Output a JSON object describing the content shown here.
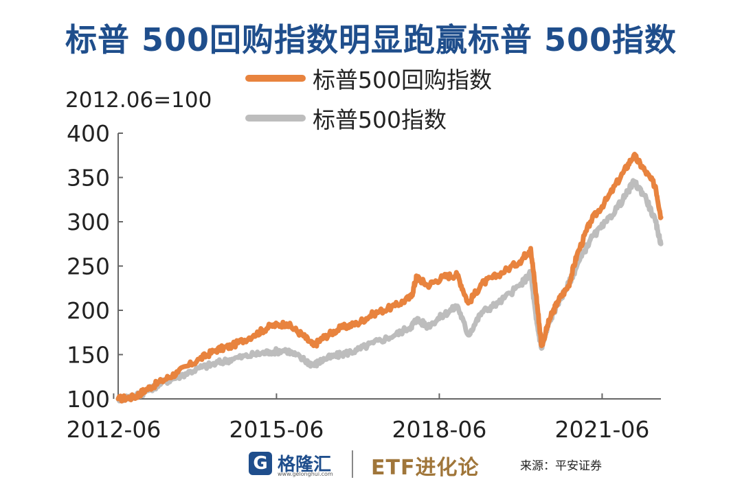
{
  "title": "标普 500回购指数明显跑赢标普 500指数",
  "base_note": "2012.06=100",
  "footer": {
    "logo_mark": "G",
    "logo_name": "格隆汇",
    "logo_url": "www.gelonghui.com",
    "etf_brand": "ETF进化论",
    "source": "来源：平安证券"
  },
  "colors": {
    "buyback": "#e8833e",
    "sp500": "#bdbdbd",
    "title": "#1f4e8c"
  },
  "chart_data": {
    "type": "line",
    "title": "标普 500回购指数明显跑赢标普 500指数",
    "xlabel": "",
    "ylabel": "",
    "ylim": [
      100,
      400
    ],
    "yticks": [
      "100",
      "150",
      "200",
      "250",
      "300",
      "350",
      "400"
    ],
    "xticks": [
      "2012-06",
      "2015-06",
      "2018-06",
      "2021-06"
    ],
    "xlim": [
      2012.5,
      2022.5
    ],
    "grid": false,
    "legend_position": "top",
    "series": [
      {
        "name": "标普500回购指数",
        "color": "#e8833e",
        "points": [
          [
            2012.5,
            100
          ],
          [
            2012.8,
            102
          ],
          [
            2013.0,
            110
          ],
          [
            2013.3,
            120
          ],
          [
            2013.6,
            130
          ],
          [
            2014.0,
            145
          ],
          [
            2014.3,
            155
          ],
          [
            2014.6,
            160
          ],
          [
            2015.0,
            172
          ],
          [
            2015.3,
            182
          ],
          [
            2015.6,
            185
          ],
          [
            2015.9,
            172
          ],
          [
            2016.1,
            160
          ],
          [
            2016.3,
            170
          ],
          [
            2016.6,
            180
          ],
          [
            2016.9,
            185
          ],
          [
            2017.2,
            196
          ],
          [
            2017.6,
            205
          ],
          [
            2017.9,
            215
          ],
          [
            2018.0,
            238
          ],
          [
            2018.2,
            228
          ],
          [
            2018.5,
            238
          ],
          [
            2018.75,
            240
          ],
          [
            2018.95,
            208
          ],
          [
            2019.2,
            230
          ],
          [
            2019.5,
            240
          ],
          [
            2019.9,
            255
          ],
          [
            2020.1,
            270
          ],
          [
            2020.2,
            218
          ],
          [
            2020.3,
            160
          ],
          [
            2020.45,
            190
          ],
          [
            2020.6,
            210
          ],
          [
            2020.8,
            228
          ],
          [
            2020.95,
            262
          ],
          [
            2021.2,
            300
          ],
          [
            2021.5,
            325
          ],
          [
            2021.8,
            355
          ],
          [
            2022.0,
            375
          ],
          [
            2022.2,
            358
          ],
          [
            2022.4,
            340
          ],
          [
            2022.5,
            305
          ]
        ]
      },
      {
        "name": "标普500指数",
        "color": "#bdbdbd",
        "points": [
          [
            2012.5,
            100
          ],
          [
            2012.8,
            103
          ],
          [
            2013.0,
            108
          ],
          [
            2013.3,
            118
          ],
          [
            2013.6,
            125
          ],
          [
            2014.0,
            135
          ],
          [
            2014.3,
            140
          ],
          [
            2014.6,
            145
          ],
          [
            2015.0,
            150
          ],
          [
            2015.3,
            153
          ],
          [
            2015.6,
            155
          ],
          [
            2015.9,
            145
          ],
          [
            2016.1,
            138
          ],
          [
            2016.3,
            145
          ],
          [
            2016.6,
            150
          ],
          [
            2016.9,
            155
          ],
          [
            2017.2,
            163
          ],
          [
            2017.6,
            172
          ],
          [
            2017.9,
            182
          ],
          [
            2018.0,
            190
          ],
          [
            2018.2,
            182
          ],
          [
            2018.5,
            195
          ],
          [
            2018.75,
            205
          ],
          [
            2018.95,
            172
          ],
          [
            2019.2,
            198
          ],
          [
            2019.5,
            208
          ],
          [
            2019.9,
            228
          ],
          [
            2020.1,
            242
          ],
          [
            2020.2,
            190
          ],
          [
            2020.3,
            157
          ],
          [
            2020.45,
            188
          ],
          [
            2020.6,
            208
          ],
          [
            2020.8,
            230
          ],
          [
            2020.95,
            250
          ],
          [
            2021.2,
            280
          ],
          [
            2021.5,
            300
          ],
          [
            2021.8,
            325
          ],
          [
            2022.0,
            345
          ],
          [
            2022.2,
            330
          ],
          [
            2022.4,
            300
          ],
          [
            2022.5,
            275
          ]
        ]
      }
    ]
  }
}
